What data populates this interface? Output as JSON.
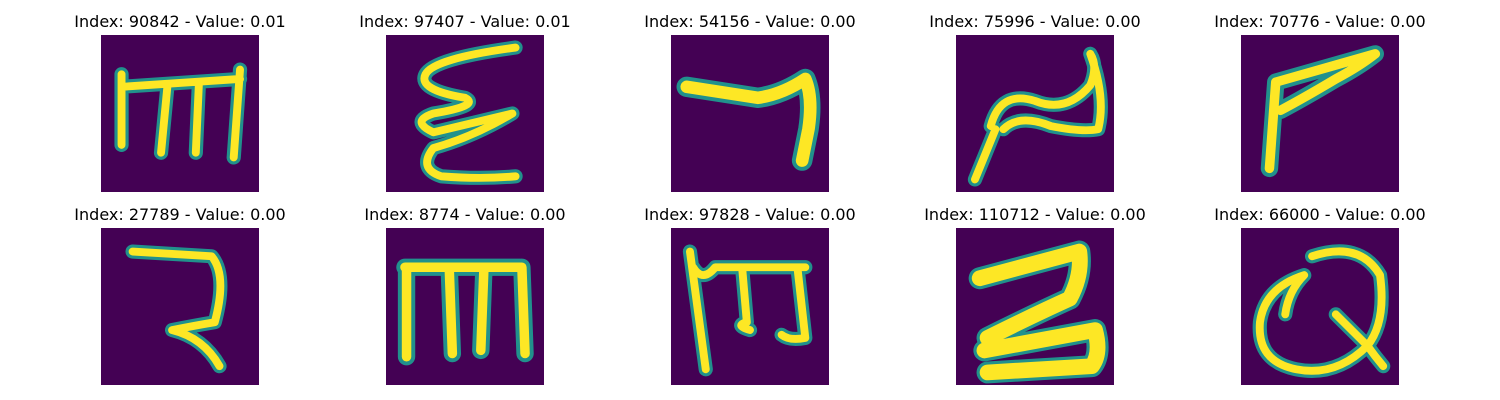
{
  "panels": [
    {
      "title": "Index: 90842 - Value: 0.01",
      "glyph": "m-shape-1"
    },
    {
      "title": "Index: 97407 - Value: 0.01",
      "glyph": "zigzag-3"
    },
    {
      "title": "Index: 54156 - Value: 0.00",
      "glyph": "hook-7"
    },
    {
      "title": "Index: 75996 - Value: 0.00",
      "glyph": "n-hook"
    },
    {
      "title": "Index: 70776 - Value: 0.00",
      "glyph": "flag-p"
    },
    {
      "title": "Index: 27789 - Value: 0.00",
      "glyph": "ra-shape"
    },
    {
      "title": "Index: 8774 - Value: 0.00",
      "glyph": "m-shape-2"
    },
    {
      "title": "Index: 97828 - Value: 0.00",
      "glyph": "m-curl"
    },
    {
      "title": "Index: 110712 - Value: 0.00",
      "glyph": "z-bold"
    },
    {
      "title": "Index: 66000 - Value: 0.00",
      "glyph": "loop-q"
    }
  ],
  "colors": {
    "background_tile": "#440154",
    "stroke_outer": "#21918c",
    "stroke_mid": "#5ec962",
    "stroke_core": "#fde725"
  }
}
